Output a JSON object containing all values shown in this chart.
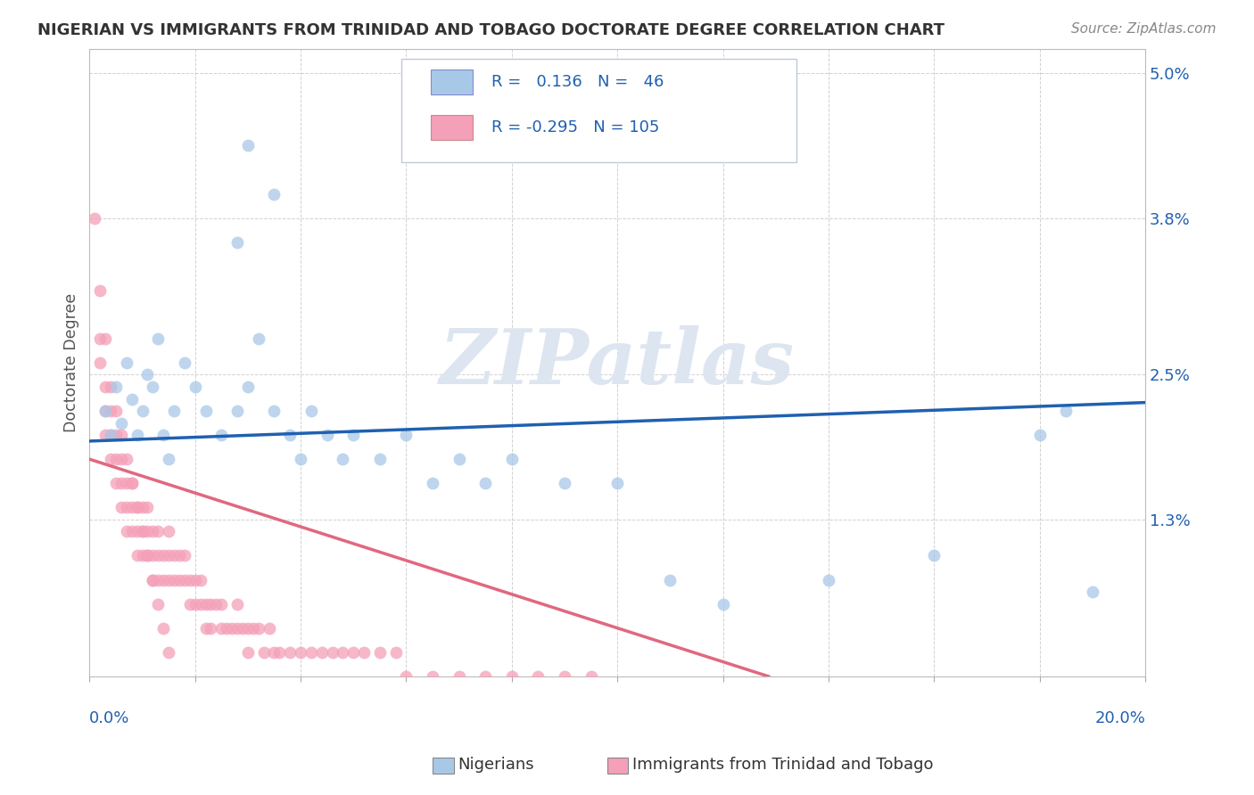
{
  "title": "NIGERIAN VS IMMIGRANTS FROM TRINIDAD AND TOBAGO DOCTORATE DEGREE CORRELATION CHART",
  "source": "Source: ZipAtlas.com",
  "ylabel": "Doctorate Degree",
  "xmin": 0.0,
  "xmax": 0.2,
  "ymin": 0.0,
  "ymax": 0.052,
  "ytick_vals": [
    0.013,
    0.025,
    0.038,
    0.05
  ],
  "ytick_labels": [
    "1.3%",
    "2.5%",
    "3.8%",
    "5.0%"
  ],
  "blue_scatter_color": "#a8c8e8",
  "pink_scatter_color": "#f4a0b8",
  "blue_line_color": "#2060b0",
  "pink_line_color": "#e06880",
  "watermark_color": "#dde5f0",
  "bg_color": "#ffffff",
  "grid_color": "#cccccc",
  "title_color": "#333333",
  "axis_label_color": "#2060b0",
  "legend_text_color": "#2060b0",
  "legend_black_color": "#333333"
}
